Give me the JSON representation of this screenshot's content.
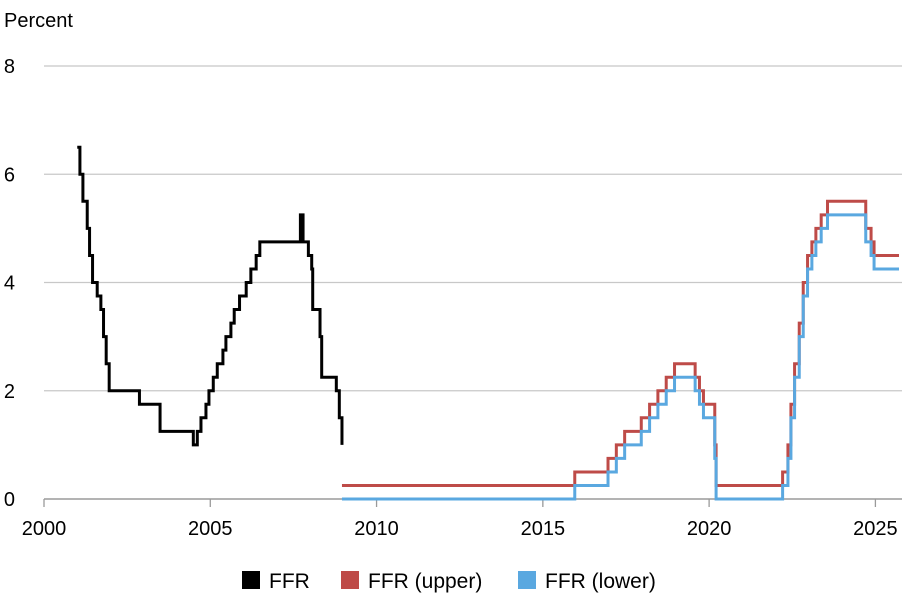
{
  "chart_data": {
    "type": "line",
    "ylabel": "Percent",
    "xlabel": "",
    "title": "",
    "xlim": [
      2000,
      2025.8
    ],
    "ylim": [
      0,
      8
    ],
    "xticks": [
      2000,
      2005,
      2010,
      2015,
      2020,
      2025
    ],
    "yticks": [
      0,
      2,
      4,
      6,
      8
    ],
    "grid": "horizontal",
    "legend_position": "bottom",
    "step": true,
    "series": [
      {
        "name": "FFR",
        "color": "#000000",
        "x": [
          2001.0,
          2001.08,
          2001.17,
          2001.3,
          2001.37,
          2001.46,
          2001.6,
          2001.71,
          2001.79,
          2001.87,
          2001.96,
          2002.87,
          2003.49,
          2004.49,
          2004.61,
          2004.72,
          2004.87,
          2004.96,
          2005.09,
          2005.21,
          2005.38,
          2005.47,
          2005.62,
          2005.72,
          2005.88,
          2006.08,
          2006.22,
          2006.38,
          2006.49,
          2007.71,
          2007.79,
          2007.95,
          2008.05,
          2008.08,
          2008.3,
          2008.35,
          2008.79,
          2008.88,
          2008.96
        ],
        "values": [
          6.5,
          6.0,
          5.5,
          5.0,
          4.5,
          4.0,
          3.75,
          3.5,
          3.0,
          2.5,
          2.0,
          1.75,
          1.25,
          1.0,
          1.25,
          1.5,
          1.75,
          2.0,
          2.25,
          2.5,
          2.75,
          3.0,
          3.25,
          3.5,
          3.75,
          4.0,
          4.25,
          4.5,
          4.75,
          5.25,
          4.75,
          4.5,
          4.25,
          3.5,
          3.0,
          2.25,
          2.0,
          1.5,
          1.0
        ]
      },
      {
        "name": "FFR (upper)",
        "color": "#be4b48",
        "x": [
          2008.96,
          2015.96,
          2016.96,
          2017.21,
          2017.46,
          2017.96,
          2018.21,
          2018.46,
          2018.71,
          2018.96,
          2019.58,
          2019.71,
          2019.83,
          2020.17,
          2020.21,
          2022.21,
          2022.37,
          2022.46,
          2022.57,
          2022.71,
          2022.83,
          2022.96,
          2023.09,
          2023.21,
          2023.37,
          2023.56,
          2024.71,
          2024.87,
          2024.96,
          2025.71
        ],
        "values": [
          0.25,
          0.5,
          0.75,
          1.0,
          1.25,
          1.5,
          1.75,
          2.0,
          2.25,
          2.5,
          2.25,
          2.0,
          1.75,
          1.0,
          0.25,
          0.5,
          1.0,
          1.75,
          2.5,
          3.25,
          4.0,
          4.5,
          4.75,
          5.0,
          5.25,
          5.5,
          5.0,
          4.75,
          4.5,
          4.5
        ]
      },
      {
        "name": "FFR (lower)",
        "color": "#5aa8e0",
        "x": [
          2008.96,
          2015.96,
          2016.96,
          2017.21,
          2017.46,
          2017.96,
          2018.21,
          2018.46,
          2018.71,
          2018.96,
          2019.58,
          2019.71,
          2019.83,
          2020.17,
          2020.21,
          2022.21,
          2022.37,
          2022.46,
          2022.57,
          2022.71,
          2022.83,
          2022.96,
          2023.09,
          2023.21,
          2023.37,
          2023.56,
          2024.71,
          2024.87,
          2024.96,
          2025.71
        ],
        "values": [
          0.0,
          0.25,
          0.5,
          0.75,
          1.0,
          1.25,
          1.5,
          1.75,
          2.0,
          2.25,
          2.0,
          1.75,
          1.5,
          0.75,
          0.0,
          0.25,
          0.75,
          1.5,
          2.25,
          3.0,
          3.75,
          4.25,
          4.5,
          4.75,
          5.0,
          5.25,
          4.75,
          4.5,
          4.25,
          4.25
        ]
      }
    ]
  }
}
